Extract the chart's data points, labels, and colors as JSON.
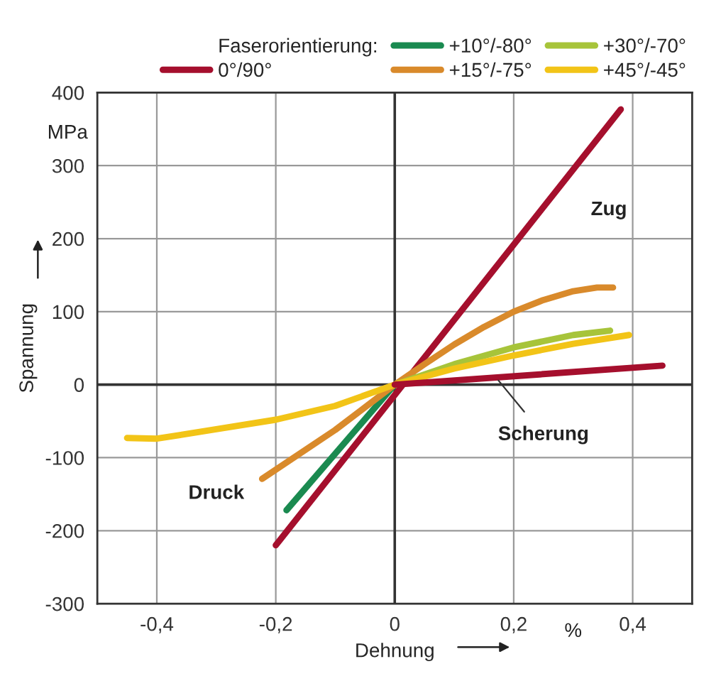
{
  "chart_data": {
    "type": "line",
    "xlabel": "Dehnung",
    "ylabel": "Spannung",
    "legend_title": "Faserorientierung:",
    "xlim": [
      -0.5,
      0.5
    ],
    "ylim": [
      -300,
      400
    ],
    "xticks": [
      {
        "value": -0.4,
        "label": "-0,4"
      },
      {
        "value": -0.2,
        "label": "-0,2"
      },
      0,
      {
        "value": 0.2,
        "label": "0,2"
      },
      {
        "value": 0.4,
        "label": "0,4"
      }
    ],
    "yticks": [
      -300,
      -200,
      -100,
      0,
      100,
      200,
      300,
      400
    ],
    "grid": true,
    "legend": "top",
    "marker": "none",
    "line_style": "solid",
    "series": [
      {
        "name": "0°/90°",
        "color": "#a50f2d",
        "x": [
          -0.2,
          0.38
        ],
        "values": [
          -220,
          377
        ]
      },
      {
        "name": "+10°/-80°",
        "color": "#1a8a50",
        "x": [
          -0.182,
          0
        ],
        "values": [
          -172,
          0
        ]
      },
      {
        "name": "+15°/-75°",
        "color": "#d98a2b",
        "x": [
          -0.223,
          -0.1,
          0,
          0.05,
          0.1,
          0.15,
          0.2,
          0.25,
          0.3,
          0.34,
          0.367
        ],
        "values": [
          -129,
          -62,
          0,
          28,
          55,
          79,
          100,
          116,
          128,
          133,
          133
        ]
      },
      {
        "name": "+30°/-70°",
        "color": "#a7c43a",
        "x": [
          0,
          0.1,
          0.2,
          0.3,
          0.362
        ],
        "values": [
          0,
          28,
          51,
          68,
          74
        ]
      },
      {
        "name": "+45°/-45°",
        "color": "#f2c417",
        "x": [
          -0.45,
          -0.4,
          -0.3,
          -0.2,
          -0.1,
          0,
          0.1,
          0.2,
          0.3,
          0.394
        ],
        "values": [
          -73,
          -74,
          -61,
          -48,
          -29,
          0,
          22,
          40,
          56,
          68
        ]
      },
      {
        "color": "#a50f2d",
        "x": [
          0,
          0.45
        ],
        "values": [
          0,
          26
        ]
      }
    ],
    "annotations": [
      "MPa",
      "%",
      "Zug",
      "Druck",
      {
        "text": "Scherung",
        "x": 0.17,
        "y": 10
      }
    ]
  }
}
